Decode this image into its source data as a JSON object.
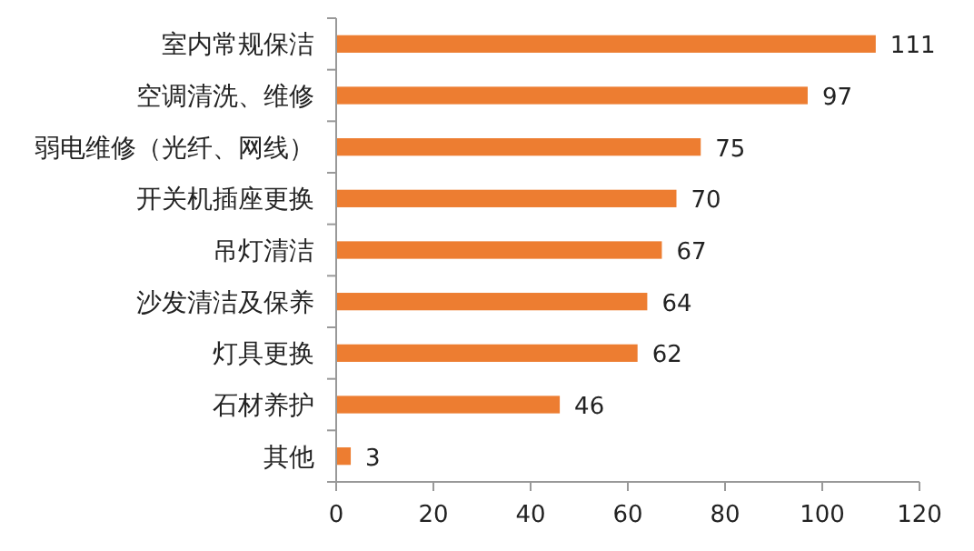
{
  "chart_data": {
    "type": "bar",
    "orientation": "horizontal",
    "categories": [
      "室内常规保洁",
      "空调清洗、维修",
      "弱电维修（光纤、网线）",
      "开关机插座更换",
      "吊灯清洁",
      "沙发清洁及保养",
      "灯具更换",
      "石材养护",
      "其他"
    ],
    "values": [
      111,
      97,
      75,
      70,
      67,
      64,
      62,
      46,
      3
    ],
    "color": "#ed7d31",
    "xlim": [
      0,
      120
    ],
    "xticks": [
      0,
      20,
      40,
      60,
      80,
      100,
      120
    ],
    "data_labels": true
  }
}
